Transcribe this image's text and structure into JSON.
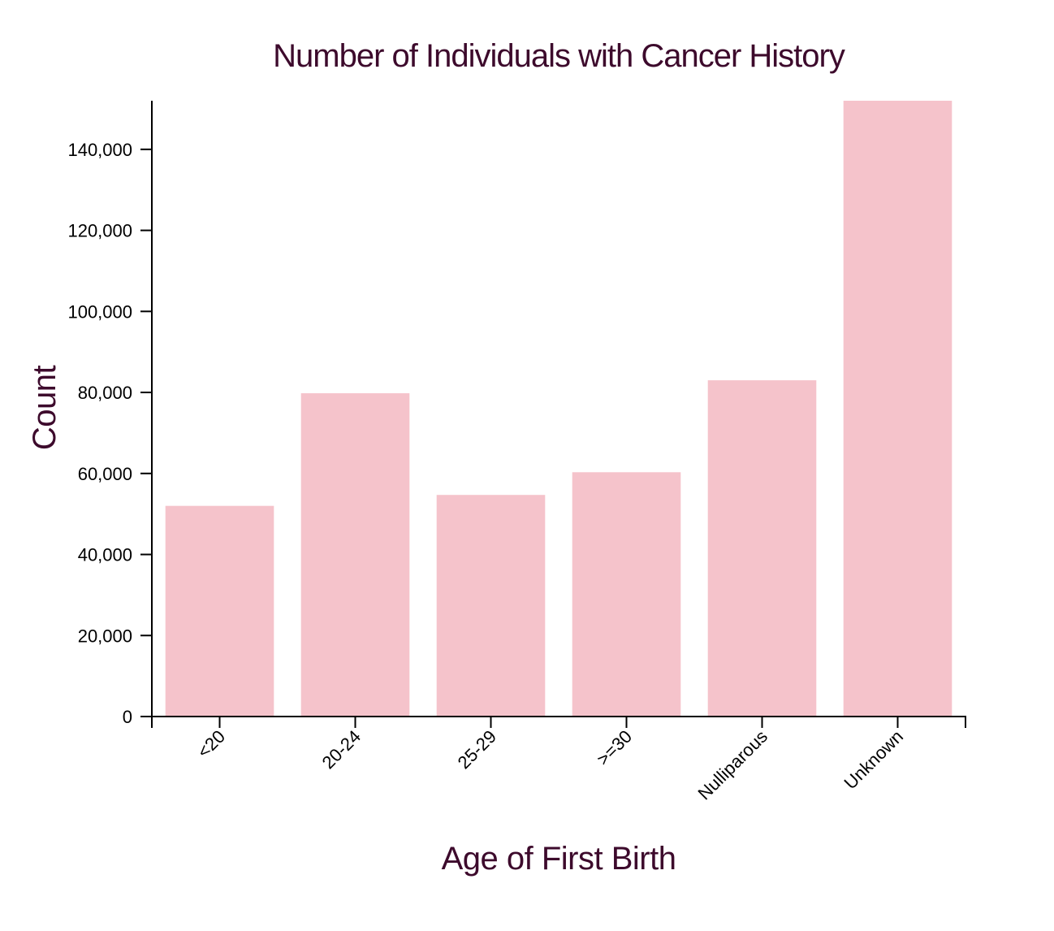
{
  "chart_data": {
    "type": "bar",
    "title": "Number of Individuals with Cancer History",
    "xlabel": "Age of First Birth",
    "ylabel": "Count",
    "categories": [
      "<20",
      "20-24",
      "25-29",
      ">=30",
      "Nulliparous",
      "Unknown"
    ],
    "values": [
      52000,
      79800,
      54700,
      60300,
      83000,
      152000
    ],
    "ylim": [
      0,
      152000
    ],
    "yticks": [
      0,
      20000,
      40000,
      60000,
      80000,
      100000,
      120000,
      140000
    ],
    "ytick_labels": [
      "0",
      "20,000",
      "40,000",
      "60,000",
      "80,000",
      "100,000",
      "120,000",
      "140,000"
    ],
    "grid": false,
    "legend": "none",
    "bar_color": "#f5c3cb",
    "text_color": "#3d0a2c"
  }
}
